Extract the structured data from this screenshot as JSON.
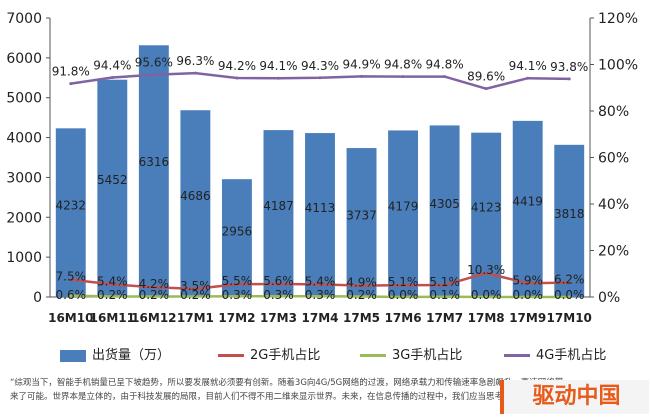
{
  "chart_data": {
    "type": "bar",
    "categories": [
      "16M10",
      "16M11",
      "16M12",
      "17M1",
      "17M2",
      "17M3",
      "17M4",
      "17M5",
      "17M6",
      "17M7",
      "17M8",
      "17M9",
      "17M10"
    ],
    "bar_series": {
      "name": "出货量（万）",
      "values": [
        4232,
        5452,
        6316,
        4686,
        2956,
        4187,
        4113,
        3737,
        4179,
        4305,
        4123,
        4419,
        3818
      ],
      "color": "#4a7ebb"
    },
    "line_series": [
      {
        "name": "2G手机占比",
        "values": [
          7.5,
          5.4,
          4.2,
          3.5,
          5.5,
          5.6,
          5.4,
          4.9,
          5.1,
          5.1,
          10.3,
          5.9,
          6.2
        ],
        "labels": [
          "7.5%",
          "5.4%",
          "4.2%",
          "3.5%",
          "5.5%",
          "5.6%",
          "5.4%",
          "4.9%",
          "5.1%",
          "5.1%",
          "10.3%",
          "5.9%",
          "6.2%"
        ],
        "color": "#c0504d"
      },
      {
        "name": "3G手机占比",
        "values": [
          0.6,
          0.2,
          0.2,
          0.2,
          0.3,
          0.3,
          0.3,
          0.2,
          0.0,
          0.1,
          0.0,
          0.0,
          0.0
        ],
        "labels": [
          "0.6%",
          "0.2%",
          "0.2%",
          "0.2%",
          "0.3%",
          "0.3%",
          "0.3%",
          "0.2%",
          "0.0%",
          "0.1%",
          "0.0%",
          "0.0%",
          "0.0%"
        ],
        "color": "#9bbb59"
      },
      {
        "name": "4G手机占比",
        "values": [
          91.8,
          94.4,
          95.6,
          96.3,
          94.2,
          94.1,
          94.3,
          94.9,
          94.8,
          94.8,
          89.6,
          94.1,
          93.8
        ],
        "labels": [
          "91.8%",
          "94.4%",
          "95.6%",
          "96.3%",
          "94.2%",
          "94.1%",
          "94.3%",
          "94.9%",
          "94.8%",
          "94.8%",
          "89.6%",
          "94.1%",
          "93.8%"
        ],
        "color": "#8064a2"
      }
    ],
    "y_left": {
      "ylim": [
        0,
        7000
      ],
      "ticks": [
        "0",
        "1000",
        "2000",
        "3000",
        "4000",
        "5000",
        "6000",
        "7000"
      ]
    },
    "y_right": {
      "ylim": [
        0,
        120
      ],
      "ticks": [
        "0%",
        "20%",
        "40%",
        "60%",
        "80%",
        "100%",
        "120%"
      ]
    },
    "grid": false,
    "legend": "bottom"
  },
  "legend": {
    "bar": "出货量（万）",
    "l2g": "2G手机占比",
    "l3g": "3G手机占比",
    "l4g": "4G手机占比"
  },
  "caption": "“综观当下，智能手机销量已呈下坡趋势，所以要发展就必须要有创新。随着3G向4G/5G网络的过渡，网络承载力和传输速率急剧飙升，高速网络带来了可能。世界本是立体的，由于科技发展的局限，目前人们不得不用二维来显示世界。未来，在信息传播的过程中，我们应当思考",
  "watermark": "驱动中国"
}
